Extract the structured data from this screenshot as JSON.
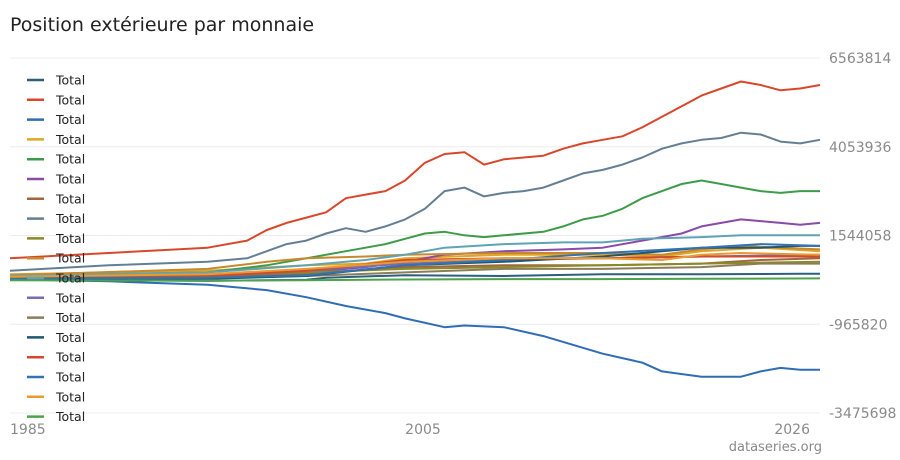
{
  "title": "Position extérieure par monnaie",
  "watermark": "dataseries.org",
  "chart_data": {
    "type": "line",
    "title": "Position extérieure par monnaie",
    "xlabel": "",
    "ylabel": "",
    "x_ticks": [
      "1985",
      "2005",
      "2026"
    ],
    "xlim": [
      1985,
      2026
    ],
    "ylim": [
      -3475698,
      6563814
    ],
    "y_ticks": [
      6563814,
      4053936,
      1544058,
      -965820,
      -3475698
    ],
    "y_tick_labels": [
      "6563814",
      "4053936",
      "1544058",
      "-965820",
      "-3475698"
    ],
    "grid": true,
    "legend_position": "left",
    "series": [
      {
        "name": "Total",
        "color": "#2d5f7c",
        "points": [
          [
            1985,
            300000
          ],
          [
            1995,
            260000
          ],
          [
            2000,
            290000
          ],
          [
            2001,
            350000
          ],
          [
            2005,
            420000
          ],
          [
            2010,
            400000
          ],
          [
            2015,
            450000
          ],
          [
            2020,
            450000
          ],
          [
            2025,
            460000
          ],
          [
            2026,
            460000
          ]
        ]
      },
      {
        "name": "Total",
        "color": "#d9472b",
        "points": [
          [
            1985,
            900000
          ],
          [
            1990,
            1050000
          ],
          [
            1995,
            1200000
          ],
          [
            1997,
            1400000
          ],
          [
            1998,
            1700000
          ],
          [
            1999,
            1900000
          ],
          [
            2000,
            2050000
          ],
          [
            2001,
            2200000
          ],
          [
            2002,
            2600000
          ],
          [
            2003,
            2700000
          ],
          [
            2004,
            2800000
          ],
          [
            2005,
            3100000
          ],
          [
            2006,
            3600000
          ],
          [
            2007,
            3850000
          ],
          [
            2008,
            3900000
          ],
          [
            2009,
            3550000
          ],
          [
            2010,
            3700000
          ],
          [
            2011,
            3750000
          ],
          [
            2012,
            3800000
          ],
          [
            2013,
            4000000
          ],
          [
            2014,
            4150000
          ],
          [
            2015,
            4250000
          ],
          [
            2016,
            4350000
          ],
          [
            2017,
            4600000
          ],
          [
            2018,
            4900000
          ],
          [
            2019,
            5200000
          ],
          [
            2020,
            5500000
          ],
          [
            2021,
            5700000
          ],
          [
            2022,
            5900000
          ],
          [
            2023,
            5800000
          ],
          [
            2024,
            5650000
          ],
          [
            2025,
            5700000
          ],
          [
            2026,
            5800000
          ]
        ]
      },
      {
        "name": "Total",
        "color": "#2f6db5",
        "points": [
          [
            1985,
            300000
          ],
          [
            1990,
            250000
          ],
          [
            1995,
            150000
          ],
          [
            1998,
            0
          ],
          [
            2000,
            -200000
          ],
          [
            2002,
            -450000
          ],
          [
            2004,
            -650000
          ],
          [
            2005,
            -800000
          ],
          [
            2007,
            -1050000
          ],
          [
            2008,
            -1000000
          ],
          [
            2010,
            -1050000
          ],
          [
            2012,
            -1300000
          ],
          [
            2015,
            -1800000
          ],
          [
            2017,
            -2050000
          ],
          [
            2018,
            -2300000
          ],
          [
            2020,
            -2450000
          ],
          [
            2022,
            -2450000
          ],
          [
            2023,
            -2300000
          ],
          [
            2024,
            -2200000
          ],
          [
            2025,
            -2250000
          ],
          [
            2026,
            -2250000
          ]
        ]
      },
      {
        "name": "Total",
        "color": "#e0a526",
        "points": [
          [
            1985,
            450000
          ],
          [
            1995,
            550000
          ],
          [
            2000,
            700000
          ],
          [
            2003,
            750000
          ],
          [
            2005,
            900000
          ],
          [
            2010,
            1000000
          ],
          [
            2015,
            1000000
          ],
          [
            2018,
            950000
          ],
          [
            2020,
            1100000
          ],
          [
            2023,
            1200000
          ],
          [
            2026,
            1100000
          ]
        ]
      },
      {
        "name": "Total",
        "color": "#3e9b49",
        "points": [
          [
            1985,
            400000
          ],
          [
            1995,
            500000
          ],
          [
            1998,
            700000
          ],
          [
            2000,
            900000
          ],
          [
            2002,
            1100000
          ],
          [
            2004,
            1300000
          ],
          [
            2005,
            1450000
          ],
          [
            2006,
            1600000
          ],
          [
            2007,
            1650000
          ],
          [
            2008,
            1550000
          ],
          [
            2009,
            1500000
          ],
          [
            2010,
            1550000
          ],
          [
            2012,
            1650000
          ],
          [
            2013,
            1800000
          ],
          [
            2014,
            2000000
          ],
          [
            2015,
            2100000
          ],
          [
            2016,
            2300000
          ],
          [
            2017,
            2600000
          ],
          [
            2018,
            2800000
          ],
          [
            2019,
            3000000
          ],
          [
            2020,
            3100000
          ],
          [
            2021,
            3000000
          ],
          [
            2022,
            2900000
          ],
          [
            2023,
            2800000
          ],
          [
            2024,
            2750000
          ],
          [
            2025,
            2800000
          ],
          [
            2026,
            2800000
          ]
        ]
      },
      {
        "name": "Total",
        "color": "#8a4aa8",
        "points": [
          [
            1985,
            300000
          ],
          [
            1995,
            350000
          ],
          [
            2000,
            500000
          ],
          [
            2003,
            650000
          ],
          [
            2005,
            800000
          ],
          [
            2007,
            1000000
          ],
          [
            2010,
            1100000
          ],
          [
            2013,
            1150000
          ],
          [
            2015,
            1200000
          ],
          [
            2017,
            1400000
          ],
          [
            2019,
            1600000
          ],
          [
            2020,
            1800000
          ],
          [
            2021,
            1900000
          ],
          [
            2022,
            2000000
          ],
          [
            2023,
            1950000
          ],
          [
            2024,
            1900000
          ],
          [
            2025,
            1850000
          ],
          [
            2026,
            1900000
          ]
        ]
      },
      {
        "name": "Total",
        "color": "#a0663d",
        "points": [
          [
            1985,
            350000
          ],
          [
            1995,
            380000
          ],
          [
            2000,
            450000
          ],
          [
            2005,
            650000
          ],
          [
            2010,
            700000
          ],
          [
            2015,
            700000
          ],
          [
            2020,
            750000
          ],
          [
            2023,
            850000
          ],
          [
            2026,
            900000
          ]
        ]
      },
      {
        "name": "Total",
        "color": "#647f94",
        "points": [
          [
            1985,
            550000
          ],
          [
            1990,
            700000
          ],
          [
            1995,
            800000
          ],
          [
            1997,
            900000
          ],
          [
            1998,
            1100000
          ],
          [
            1999,
            1300000
          ],
          [
            2000,
            1400000
          ],
          [
            2001,
            1600000
          ],
          [
            2002,
            1750000
          ],
          [
            2003,
            1650000
          ],
          [
            2004,
            1800000
          ],
          [
            2005,
            2000000
          ],
          [
            2006,
            2300000
          ],
          [
            2007,
            2800000
          ],
          [
            2008,
            2900000
          ],
          [
            2009,
            2650000
          ],
          [
            2010,
            2750000
          ],
          [
            2011,
            2800000
          ],
          [
            2012,
            2900000
          ],
          [
            2013,
            3100000
          ],
          [
            2014,
            3300000
          ],
          [
            2015,
            3400000
          ],
          [
            2016,
            3550000
          ],
          [
            2017,
            3750000
          ],
          [
            2018,
            4000000
          ],
          [
            2019,
            4150000
          ],
          [
            2020,
            4250000
          ],
          [
            2021,
            4300000
          ],
          [
            2022,
            4450000
          ],
          [
            2023,
            4400000
          ],
          [
            2024,
            4200000
          ],
          [
            2025,
            4150000
          ],
          [
            2026,
            4250000
          ]
        ]
      },
      {
        "name": "Total",
        "color": "#8a8a28",
        "points": [
          [
            1985,
            380000
          ],
          [
            1995,
            420000
          ],
          [
            2000,
            500000
          ],
          [
            2005,
            600000
          ],
          [
            2010,
            650000
          ],
          [
            2015,
            700000
          ],
          [
            2020,
            750000
          ],
          [
            2026,
            800000
          ]
        ]
      },
      {
        "name": "Total",
        "color": "#c7892b",
        "points": [
          [
            1985,
            420000
          ],
          [
            1995,
            600000
          ],
          [
            1998,
            800000
          ],
          [
            2000,
            900000
          ],
          [
            2003,
            950000
          ],
          [
            2005,
            1000000
          ],
          [
            2010,
            1050000
          ],
          [
            2015,
            1050000
          ],
          [
            2018,
            1000000
          ],
          [
            2020,
            1150000
          ],
          [
            2022,
            1250000
          ],
          [
            2024,
            1200000
          ],
          [
            2026,
            1150000
          ]
        ]
      },
      {
        "name": "Total",
        "color": "#5fa3b5",
        "points": [
          [
            1985,
            400000
          ],
          [
            1995,
            500000
          ],
          [
            2000,
            700000
          ],
          [
            2003,
            850000
          ],
          [
            2005,
            1000000
          ],
          [
            2007,
            1200000
          ],
          [
            2010,
            1300000
          ],
          [
            2013,
            1350000
          ],
          [
            2015,
            1350000
          ],
          [
            2017,
            1450000
          ],
          [
            2020,
            1500000
          ],
          [
            2022,
            1550000
          ],
          [
            2024,
            1550000
          ],
          [
            2026,
            1550000
          ]
        ]
      },
      {
        "name": "Total",
        "color": "#7b6bb0",
        "points": [
          [
            1985,
            360000
          ],
          [
            1995,
            400000
          ],
          [
            2000,
            550000
          ],
          [
            2005,
            750000
          ],
          [
            2010,
            850000
          ],
          [
            2015,
            900000
          ],
          [
            2020,
            950000
          ],
          [
            2026,
            1000000
          ]
        ]
      },
      {
        "name": "Total",
        "color": "#8c7d5a",
        "points": [
          [
            1985,
            320000
          ],
          [
            1995,
            350000
          ],
          [
            2000,
            400000
          ],
          [
            2005,
            500000
          ],
          [
            2010,
            600000
          ],
          [
            2015,
            600000
          ],
          [
            2020,
            650000
          ],
          [
            2023,
            750000
          ],
          [
            2026,
            750000
          ]
        ]
      },
      {
        "name": "Total",
        "color": "#1f5773",
        "points": [
          [
            1985,
            300000
          ],
          [
            1995,
            320000
          ],
          [
            2000,
            400000
          ],
          [
            2005,
            700000
          ],
          [
            2010,
            800000
          ],
          [
            2015,
            950000
          ],
          [
            2018,
            1100000
          ],
          [
            2020,
            1200000
          ],
          [
            2023,
            1200000
          ],
          [
            2025,
            1250000
          ],
          [
            2026,
            1250000
          ]
        ]
      },
      {
        "name": "Total",
        "color": "#cf4a2e",
        "points": [
          [
            1985,
            350000
          ],
          [
            1995,
            400000
          ],
          [
            2000,
            550000
          ],
          [
            2005,
            850000
          ],
          [
            2010,
            900000
          ],
          [
            2015,
            900000
          ],
          [
            2020,
            950000
          ],
          [
            2026,
            950000
          ]
        ]
      },
      {
        "name": "Total",
        "color": "#3473b3",
        "points": [
          [
            1985,
            330000
          ],
          [
            1995,
            350000
          ],
          [
            2000,
            420000
          ],
          [
            2005,
            700000
          ],
          [
            2010,
            850000
          ],
          [
            2015,
            1050000
          ],
          [
            2020,
            1200000
          ],
          [
            2023,
            1300000
          ],
          [
            2026,
            1250000
          ]
        ]
      },
      {
        "name": "Total",
        "color": "#eb9a2e",
        "points": [
          [
            1985,
            380000
          ],
          [
            1995,
            450000
          ],
          [
            2000,
            600000
          ],
          [
            2005,
            800000
          ],
          [
            2010,
            900000
          ],
          [
            2015,
            900000
          ],
          [
            2018,
            850000
          ],
          [
            2020,
            1000000
          ],
          [
            2022,
            1050000
          ],
          [
            2026,
            1000000
          ]
        ]
      },
      {
        "name": "Total",
        "color": "#4ea24b",
        "points": [
          [
            1985,
            280000
          ],
          [
            1995,
            270000
          ],
          [
            2000,
            280000
          ],
          [
            2005,
            300000
          ],
          [
            2010,
            310000
          ],
          [
            2015,
            310000
          ],
          [
            2020,
            320000
          ],
          [
            2026,
            330000
          ]
        ]
      }
    ]
  }
}
